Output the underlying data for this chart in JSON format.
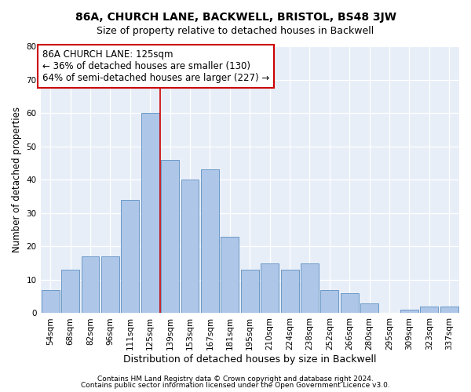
{
  "title1": "86A, CHURCH LANE, BACKWELL, BRISTOL, BS48 3JW",
  "title2": "Size of property relative to detached houses in Backwell",
  "xlabel": "Distribution of detached houses by size in Backwell",
  "ylabel": "Number of detached properties",
  "bar_labels": [
    "54sqm",
    "68sqm",
    "82sqm",
    "96sqm",
    "111sqm",
    "125sqm",
    "139sqm",
    "153sqm",
    "167sqm",
    "181sqm",
    "195sqm",
    "210sqm",
    "224sqm",
    "238sqm",
    "252sqm",
    "266sqm",
    "280sqm",
    "295sqm",
    "309sqm",
    "323sqm",
    "337sqm"
  ],
  "bar_values": [
    7,
    13,
    17,
    17,
    34,
    60,
    46,
    40,
    43,
    23,
    13,
    15,
    13,
    15,
    7,
    6,
    3,
    0,
    1,
    2,
    2
  ],
  "bar_color": "#aec6e8",
  "bar_edgecolor": "#5a8fc0",
  "vline_color": "#cc0000",
  "annotation_text": "86A CHURCH LANE: 125sqm\n← 36% of detached houses are smaller (130)\n64% of semi-detached houses are larger (227) →",
  "annotation_box_edgecolor": "#cc0000",
  "annotation_box_facecolor": "#ffffff",
  "ylim": [
    0,
    80
  ],
  "yticks": [
    0,
    10,
    20,
    30,
    40,
    50,
    60,
    70,
    80
  ],
  "background_color": "#e8eef8",
  "footer1": "Contains HM Land Registry data © Crown copyright and database right 2024.",
  "footer2": "Contains public sector information licensed under the Open Government Licence v3.0.",
  "title1_fontsize": 10,
  "title2_fontsize": 9,
  "xlabel_fontsize": 9,
  "ylabel_fontsize": 8.5,
  "tick_fontsize": 7.5,
  "annotation_fontsize": 8.5,
  "footer_fontsize": 6.5
}
